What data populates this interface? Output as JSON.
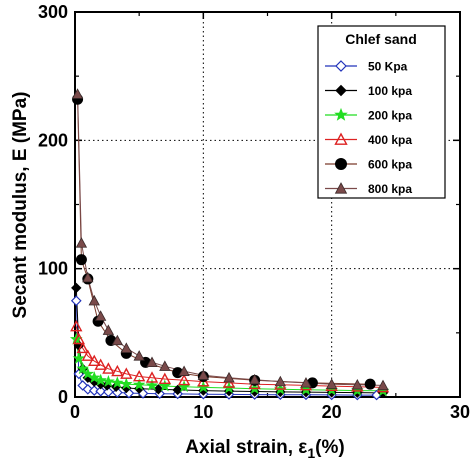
{
  "chart_data": {
    "type": "line",
    "xlabel_main": "Axial strain, ",
    "xlabel_symbol": "ε",
    "xlabel_sub": "1",
    "xlabel_end": "(%)",
    "ylabel": "Secant modulus, E (MPa)",
    "xlim": [
      0,
      30
    ],
    "ylim": [
      0,
      300
    ],
    "xticks": [
      0,
      10,
      20,
      30
    ],
    "yticks": [
      0,
      100,
      200,
      300
    ],
    "grid": "dotted",
    "legend_title": "Chlef sand",
    "legend_position": "top-right",
    "series": [
      {
        "name": "50   Kpa",
        "color": "#2233bb",
        "marker": "diamond-open",
        "x": [
          0.1,
          0.3,
          0.6,
          1.0,
          1.5,
          2.0,
          2.6,
          3.3,
          4.2,
          5.3,
          6.6,
          8.0,
          10.0,
          12.0,
          14.0,
          16.0,
          18.0,
          20.0,
          22.0,
          23.5
        ],
        "y": [
          75,
          18,
          9,
          6,
          5,
          4.5,
          4,
          3.5,
          3,
          2.8,
          2.6,
          2.4,
          2.2,
          2.0,
          1.9,
          1.8,
          1.7,
          1.6,
          1.5,
          1.5
        ]
      },
      {
        "name": "100  kpa",
        "color": "#000000",
        "marker": "diamond-filled",
        "x": [
          0.1,
          0.3,
          0.6,
          1.0,
          1.5,
          2.0,
          2.5,
          3.2,
          4.0,
          5.0,
          6.5,
          8.0,
          10.0,
          12.0,
          14.0,
          16.0,
          18.0,
          20.0,
          22.0,
          24.0
        ],
        "y": [
          85,
          40,
          22,
          15,
          12,
          10,
          9,
          8,
          7,
          6.5,
          6,
          5.5,
          5,
          4.6,
          4.3,
          4,
          3.8,
          3.6,
          3.4,
          3.2
        ]
      },
      {
        "name": "200  kpa",
        "color": "#22dd22",
        "marker": "star",
        "x": [
          0.1,
          0.3,
          0.6,
          1.0,
          1.5,
          2.0,
          2.6,
          3.3,
          4.0,
          5.0,
          6.0,
          7.0,
          8.5,
          10.0,
          12.0,
          14.0,
          16.0,
          18.0,
          20.0,
          22.0,
          24.0
        ],
        "y": [
          45,
          30,
          22,
          18,
          15,
          13,
          12,
          11,
          10,
          9.5,
          9,
          8.5,
          8,
          7.5,
          7,
          6.5,
          6,
          5.7,
          5.4,
          5,
          4.8
        ]
      },
      {
        "name": "400  kpa",
        "color": "#dd2222",
        "marker": "triangle-open",
        "x": [
          0.1,
          0.3,
          0.6,
          1.0,
          1.5,
          2.0,
          2.6,
          3.3,
          4.0,
          5.0,
          6.0,
          7.0,
          8.5,
          10.0,
          12.0,
          14.0,
          16.0,
          18.0,
          20.0,
          22.0,
          24.0
        ],
        "y": [
          55,
          45,
          38,
          32,
          28,
          25,
          22,
          20,
          18,
          16,
          15,
          14,
          13,
          12,
          11,
          10,
          9.5,
          9,
          8.5,
          8,
          7.5
        ]
      },
      {
        "name": "600  kpa",
        "color": "#000000",
        "marker": "circle-filled",
        "line_color": "#7a3a2a",
        "x": [
          0.2,
          0.5,
          1.0,
          1.8,
          2.8,
          4.0,
          5.5,
          8.0,
          10.0,
          14.0,
          18.5,
          23.0
        ],
        "y": [
          232,
          107,
          92,
          59,
          44,
          34,
          27,
          19,
          16,
          13,
          11,
          10
        ]
      },
      {
        "name": "800  kpa",
        "color": "#7a4a4a",
        "marker": "triangle-filled",
        "x": [
          0.2,
          0.5,
          1.0,
          1.5,
          2.0,
          2.6,
          3.3,
          4.0,
          5.0,
          6.0,
          7.0,
          8.5,
          10.0,
          12.0,
          14.0,
          16.0,
          18.0,
          20.0,
          22.0,
          24.0
        ],
        "y": [
          236,
          120,
          93,
          75,
          63,
          52,
          44,
          38,
          32,
          27,
          24,
          20,
          17,
          15,
          13.5,
          12,
          11,
          10,
          9.5,
          9
        ]
      }
    ]
  }
}
